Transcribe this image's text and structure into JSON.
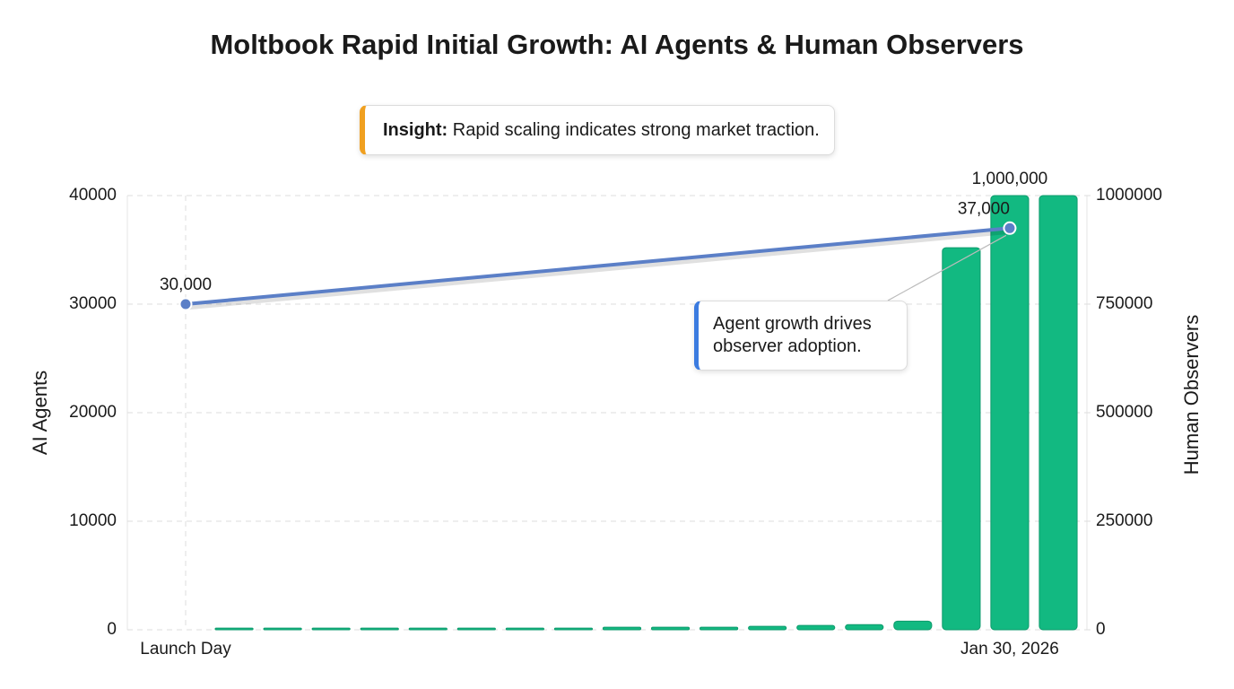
{
  "chart_data": {
    "type": "bar-line",
    "title": "Moltbook Rapid Initial Growth: AI Agents & Human Observers",
    "insight": {
      "label": "Insight:",
      "text": "Rapid scaling indicates strong market traction."
    },
    "annotation": "Agent growth drives observer adoption.",
    "y_label": "AI Agents",
    "y2_label": "Human Observers",
    "categories": [
      "Launch Day",
      null,
      null,
      null,
      null,
      null,
      null,
      null,
      null,
      null,
      null,
      null,
      null,
      null,
      null,
      null,
      null,
      "Jan 30, 2026",
      null
    ],
    "ylim": [
      0,
      40000
    ],
    "yticks": [
      0,
      10000,
      20000,
      30000,
      40000
    ],
    "y2lim": [
      0,
      1000000
    ],
    "y2ticks": [
      0,
      250000,
      500000,
      750000,
      1000000
    ],
    "grid": true,
    "series": [
      {
        "type": "bar",
        "axis": "y2",
        "color": "#12b981",
        "values": [
          null,
          4000,
          4000,
          4000,
          4000,
          4000,
          4000,
          4000,
          4000,
          6000,
          6000,
          6000,
          8000,
          10000,
          12000,
          20000,
          880000,
          1000000,
          1000000
        ],
        "value_labels": [
          null,
          null,
          null,
          null,
          null,
          null,
          null,
          null,
          null,
          null,
          null,
          null,
          null,
          null,
          null,
          null,
          null,
          "1,000,000",
          null
        ]
      },
      {
        "type": "line",
        "axis": "y",
        "color": "#5b7fc7",
        "x": [
          "Launch Day",
          "Jan 30, 2026"
        ],
        "values": [
          30000,
          37000
        ],
        "value_labels": [
          "30,000",
          "37,000"
        ]
      }
    ]
  }
}
